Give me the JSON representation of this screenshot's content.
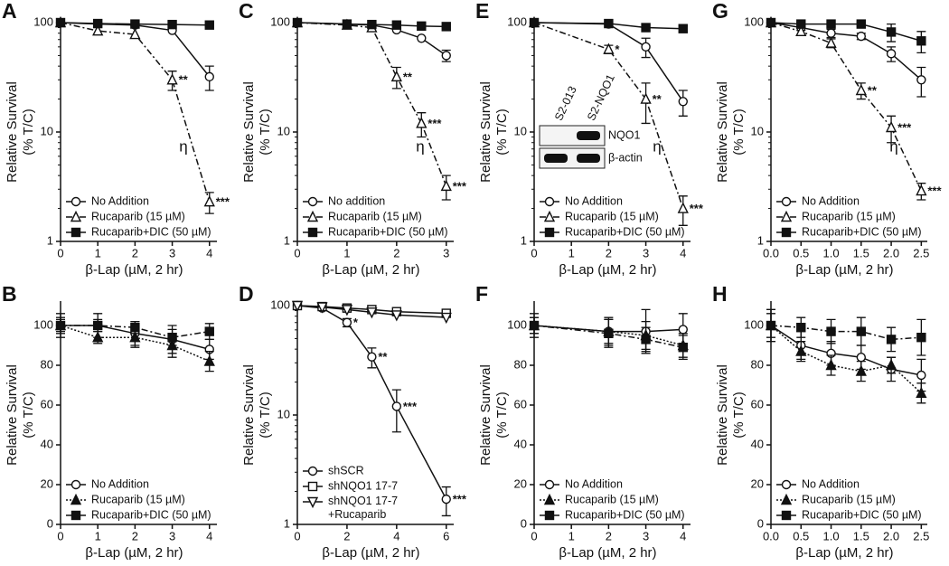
{
  "chart_data": [
    {
      "type": "line",
      "panel": "A",
      "ylabel": [
        "Relative Survival",
        "(% T/C)"
      ],
      "xlabel": "β-Lap (µM, 2 hr)",
      "log_y": true,
      "ylim": [
        1,
        100
      ],
      "yticks": [
        1,
        10,
        100
      ],
      "xlim": [
        0,
        4.2
      ],
      "xticks": [
        0,
        1,
        2,
        3,
        4
      ],
      "legend": "lower left",
      "note": "η",
      "x": [
        0,
        1,
        2,
        3,
        4
      ],
      "series": [
        {
          "name": "No Addition",
          "color": "#111111",
          "marker": "circle",
          "filled": false,
          "dash": "solid",
          "values": [
            100,
            97,
            95,
            85,
            32
          ],
          "errors": [
            0,
            0,
            0,
            0,
            8
          ]
        },
        {
          "name": "Rucaparib (15 µM)",
          "color": "#111111",
          "marker": "triangle",
          "filled": false,
          "dash": "dashdot",
          "values": [
            100,
            84,
            78,
            30,
            2.3
          ],
          "errors": [
            0,
            0,
            0,
            6,
            0.5
          ],
          "significance": [
            null,
            null,
            null,
            "**",
            "***"
          ]
        },
        {
          "name": "Rucaparib+DIC (50 µM)",
          "color": "#111111",
          "marker": "square",
          "filled": true,
          "dash": "solid",
          "values": [
            100,
            98,
            97,
            96,
            95
          ],
          "errors": [
            0,
            0,
            0,
            0,
            0
          ]
        }
      ]
    },
    {
      "type": "line",
      "panel": "B",
      "ylabel": [
        "Relative Survival",
        "(% T/C)"
      ],
      "xlabel": "β-Lap (µM, 2 hr)",
      "log_y": false,
      "ylim": [
        0,
        110
      ],
      "yticks": [
        0,
        20,
        40,
        60,
        80,
        100
      ],
      "xlim": [
        0,
        4.2
      ],
      "xticks": [
        0,
        1,
        2,
        3,
        4
      ],
      "legend": "lower left",
      "x": [
        0,
        1,
        2,
        3,
        4
      ],
      "series": [
        {
          "name": "No Addition",
          "color": "#111111",
          "marker": "circle",
          "filled": false,
          "dash": "solid",
          "values": [
            100,
            100,
            96,
            93,
            88
          ],
          "errors": [
            6,
            6,
            6,
            7,
            5
          ]
        },
        {
          "name": "Rucaparib (15 µM)",
          "color": "#111111",
          "marker": "triangle",
          "filled": true,
          "dash": "dotted",
          "values": [
            100,
            94,
            94,
            90,
            82
          ],
          "errors": [
            4,
            3,
            5,
            6,
            5
          ]
        },
        {
          "name": "Rucaparib+DIC (50 µM)",
          "color": "#111111",
          "marker": "square",
          "filled": true,
          "dash": "dashdot",
          "values": [
            100,
            100,
            99,
            94,
            97
          ],
          "errors": [
            3,
            3,
            3,
            4,
            4
          ]
        }
      ]
    },
    {
      "type": "line",
      "panel": "C",
      "ylabel": [
        "Relative Survival",
        "(% T/C)"
      ],
      "xlabel": "β-Lap (µM, 2 hr)",
      "log_y": true,
      "ylim": [
        1,
        100
      ],
      "yticks": [
        1,
        10,
        100
      ],
      "xlim": [
        0,
        3.15
      ],
      "xticks": [
        0,
        1,
        2,
        3
      ],
      "legend": "lower left",
      "note": "η",
      "x": [
        0,
        1,
        1.5,
        2,
        2.5,
        3
      ],
      "series": [
        {
          "name": "No addition",
          "color": "#111111",
          "marker": "circle",
          "filled": false,
          "dash": "solid",
          "values": [
            100,
            97,
            95,
            86,
            72,
            50
          ],
          "errors": [
            0,
            0,
            0,
            0,
            0,
            6
          ]
        },
        {
          "name": "Rucaparib (15 µM)",
          "color": "#111111",
          "marker": "triangle",
          "filled": false,
          "dash": "dashdot",
          "values": [
            100,
            95,
            90,
            32,
            12,
            3.2
          ],
          "errors": [
            0,
            0,
            0,
            7,
            3,
            0.8
          ],
          "significance": [
            null,
            null,
            null,
            "**",
            "***",
            "***"
          ]
        },
        {
          "name": "Rucaparib+DIC (50 µM)",
          "color": "#111111",
          "marker": "square",
          "filled": true,
          "dash": "solid",
          "values": [
            100,
            97,
            96,
            95,
            93,
            92
          ],
          "errors": [
            0,
            0,
            0,
            0,
            0,
            0
          ]
        }
      ]
    },
    {
      "type": "line",
      "panel": "D",
      "ylabel": [
        "Relative Survival",
        "(% T/C)"
      ],
      "xlabel": "β-Lap (µM, 2 hr)",
      "log_y": true,
      "ylim": [
        1,
        100
      ],
      "yticks": [
        1,
        10,
        100
      ],
      "xlim": [
        0,
        6.3
      ],
      "xticks": [
        0,
        2,
        4,
        6
      ],
      "legend": "lower left",
      "x": [
        0,
        1,
        2,
        3,
        4,
        6
      ],
      "series": [
        {
          "name": "shSCR",
          "color": "#111111",
          "marker": "circle",
          "filled": false,
          "dash": "solid",
          "values": [
            100,
            95,
            70,
            34,
            12,
            1.7
          ],
          "errors": [
            0,
            0,
            6,
            7,
            5,
            0.5
          ],
          "significance": [
            null,
            null,
            "*",
            "**",
            "***",
            "***"
          ]
        },
        {
          "name": "shNQO1 17-7",
          "color": "#111111",
          "marker": "square",
          "filled": false,
          "dash": "solid",
          "values": [
            100,
            98,
            95,
            92,
            88,
            85
          ],
          "errors": [
            0,
            0,
            0,
            0,
            0,
            0
          ]
        },
        {
          "name": "shNQO1 17-7\n+Rucaparib",
          "color": "#111111",
          "marker": "triangle-down",
          "filled": false,
          "dash": "solid",
          "values": [
            100,
            97,
            92,
            87,
            82,
            78
          ],
          "errors": [
            0,
            0,
            0,
            0,
            0,
            0
          ]
        }
      ]
    },
    {
      "type": "line",
      "panel": "E",
      "ylabel": [
        "Relative Survival",
        "(% T/C)"
      ],
      "xlabel": "β-Lap (µM, 2 hr)",
      "log_y": true,
      "ylim": [
        1,
        100
      ],
      "yticks": [
        1,
        10,
        100
      ],
      "xlim": [
        0,
        4.2
      ],
      "xticks": [
        0,
        1,
        2,
        3,
        4
      ],
      "legend": "lower left",
      "note": "η",
      "x": [
        0,
        2,
        3,
        4
      ],
      "series": [
        {
          "name": "No Addition",
          "color": "#111111",
          "marker": "circle",
          "filled": false,
          "dash": "solid",
          "values": [
            100,
            97,
            60,
            19
          ],
          "errors": [
            0,
            5,
            12,
            5
          ]
        },
        {
          "name": "Rucaparib (15 µM)",
          "color": "#111111",
          "marker": "triangle",
          "filled": false,
          "dash": "dashdot",
          "values": [
            100,
            57,
            20,
            2.0
          ],
          "errors": [
            0,
            5,
            8,
            0.6
          ],
          "significance": [
            null,
            "*",
            "**",
            "***"
          ]
        },
        {
          "name": "Rucaparib+DIC (50 µM)",
          "color": "#111111",
          "marker": "square",
          "filled": true,
          "dash": "solid",
          "values": [
            100,
            98,
            90,
            88
          ],
          "errors": [
            0,
            0,
            5,
            5
          ]
        }
      ],
      "inset": {
        "columns": [
          "S2-013",
          "S2-NQO1"
        ],
        "rows": [
          "NQO1",
          "β-actin"
        ]
      }
    },
    {
      "type": "line",
      "panel": "F",
      "ylabel": [
        "Relative Survival",
        "(% T/C)"
      ],
      "xlabel": "β-Lap (µM, 2 hr)",
      "log_y": false,
      "ylim": [
        0,
        110
      ],
      "yticks": [
        0,
        20,
        40,
        60,
        80,
        100
      ],
      "xlim": [
        0,
        4.2
      ],
      "xticks": [
        0,
        1,
        2,
        3,
        4
      ],
      "legend": "lower left",
      "x": [
        0,
        2,
        3,
        4
      ],
      "series": [
        {
          "name": "No Addition",
          "color": "#111111",
          "marker": "circle",
          "filled": false,
          "dash": "solid",
          "values": [
            100,
            97,
            97,
            98
          ],
          "errors": [
            6,
            7,
            11,
            8
          ]
        },
        {
          "name": "Rucaparib (15 µM)",
          "color": "#111111",
          "marker": "triangle",
          "filled": true,
          "dash": "dotted",
          "values": [
            100,
            97,
            95,
            90
          ],
          "errors": [
            4,
            6,
            7,
            6
          ]
        },
        {
          "name": "Rucaparib+DIC (50 µM)",
          "color": "#111111",
          "marker": "square",
          "filled": true,
          "dash": "dashdot",
          "values": [
            100,
            96,
            93,
            89
          ],
          "errors": [
            4,
            7,
            6,
            6
          ]
        }
      ]
    },
    {
      "type": "line",
      "panel": "G",
      "ylabel": [
        "Relative Survival",
        "(% T/C)"
      ],
      "xlabel": "β-Lap (µM, 2 hr)",
      "log_y": true,
      "ylim": [
        1,
        100
      ],
      "yticks": [
        1,
        10,
        100
      ],
      "xlim": [
        0,
        2.6
      ],
      "xticks": [
        {
          "value": 0,
          "label": "0.0"
        },
        0.5,
        {
          "value": 1,
          "label": "1.0"
        },
        1.5,
        {
          "value": 2,
          "label": "2.0"
        },
        2.5
      ],
      "legend": "lower left",
      "note": "η",
      "x": [
        0,
        0.5,
        1,
        1.5,
        2,
        2.5
      ],
      "series": [
        {
          "name": "No Addition",
          "color": "#111111",
          "marker": "circle",
          "filled": false,
          "dash": "solid",
          "values": [
            100,
            90,
            80,
            75,
            52,
            30
          ],
          "errors": [
            0,
            5,
            7,
            5,
            8,
            9
          ]
        },
        {
          "name": "Rucaparib (15 µM)",
          "color": "#111111",
          "marker": "triangle",
          "filled": false,
          "dash": "dashdot",
          "values": [
            100,
            83,
            65,
            24,
            11,
            2.9
          ],
          "errors": [
            0,
            6,
            6,
            4,
            3,
            0.5
          ],
          "significance": [
            null,
            null,
            null,
            "**",
            "***",
            "***"
          ]
        },
        {
          "name": "Rucaparib+DIC (50 µM)",
          "color": "#111111",
          "marker": "square",
          "filled": true,
          "dash": "solid",
          "values": [
            100,
            97,
            97,
            97,
            82,
            68
          ],
          "errors": [
            0,
            4,
            5,
            4,
            15,
            15
          ]
        }
      ]
    },
    {
      "type": "line",
      "panel": "H",
      "ylabel": [
        "Relative Survival",
        "(% T/C)"
      ],
      "xlabel": "β-Lap (µM, 2 hr)",
      "log_y": false,
      "ylim": [
        0,
        110
      ],
      "yticks": [
        0,
        20,
        40,
        60,
        80,
        100
      ],
      "xlim": [
        0,
        2.6
      ],
      "xticks": [
        {
          "value": 0,
          "label": "0.0"
        },
        0.5,
        {
          "value": 1,
          "label": "1.0"
        },
        1.5,
        {
          "value": 2,
          "label": "2.0"
        },
        2.5
      ],
      "legend": "lower left",
      "x": [
        0,
        0.5,
        1,
        1.5,
        2,
        2.5
      ],
      "series": [
        {
          "name": "No Addition",
          "color": "#111111",
          "marker": "circle",
          "filled": false,
          "dash": "solid",
          "values": [
            100,
            90,
            86,
            84,
            78,
            75
          ],
          "errors": [
            8,
            7,
            6,
            6,
            6,
            8
          ]
        },
        {
          "name": "Rucaparib (15 µM)",
          "color": "#111111",
          "marker": "triangle",
          "filled": true,
          "dash": "dotted",
          "values": [
            100,
            87,
            80,
            77,
            80,
            66
          ],
          "errors": [
            6,
            5,
            5,
            5,
            4,
            5
          ]
        },
        {
          "name": "Rucaparib+DIC (50 µM)",
          "color": "#111111",
          "marker": "square",
          "filled": true,
          "dash": "dashdot",
          "values": [
            100,
            99,
            97,
            97,
            93,
            94
          ],
          "errors": [
            8,
            5,
            6,
            7,
            6,
            9
          ]
        }
      ]
    }
  ]
}
